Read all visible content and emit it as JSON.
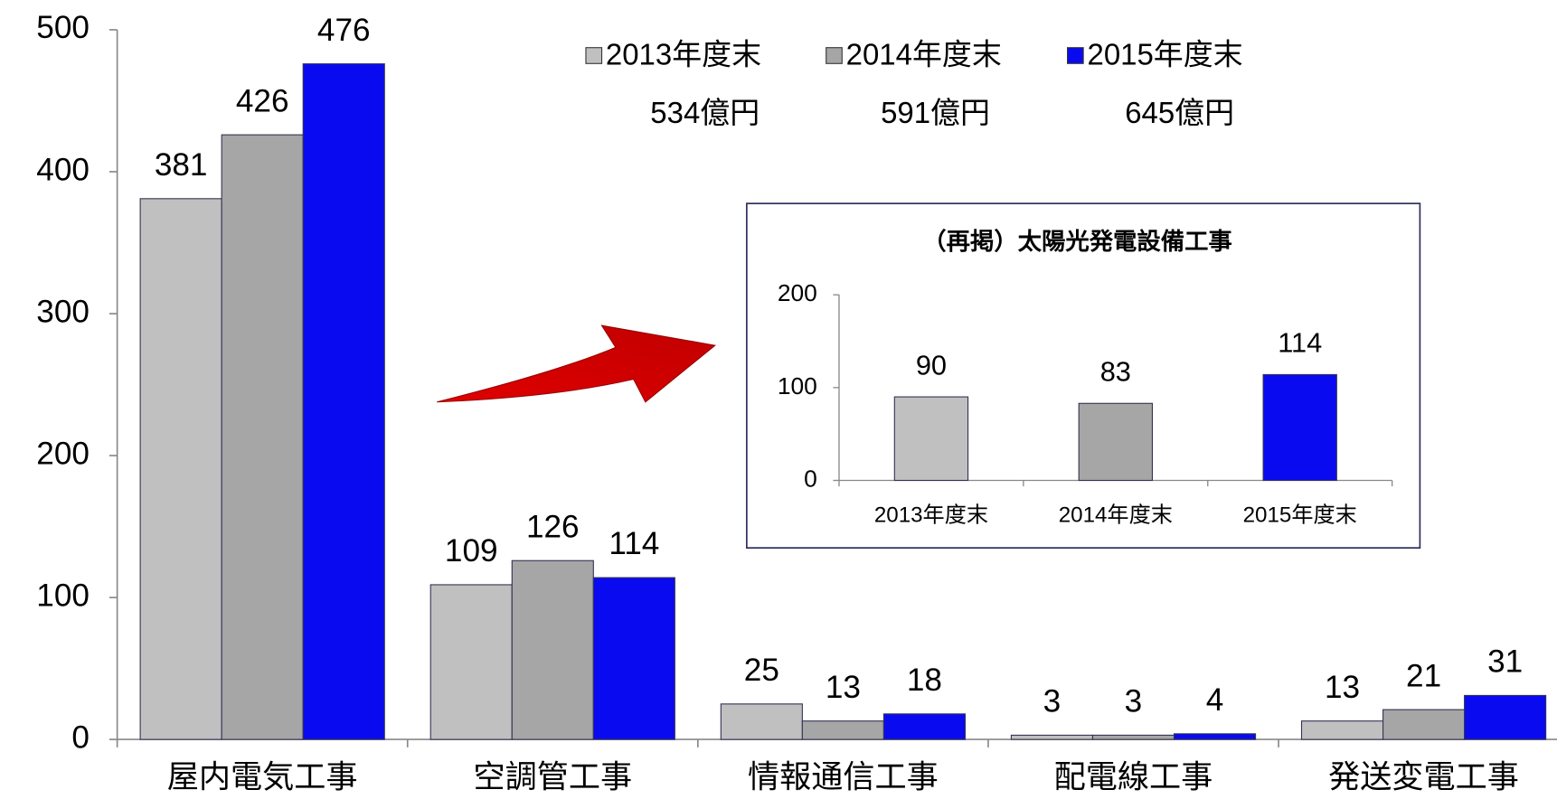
{
  "chart_data": [
    {
      "type": "bar",
      "categories": [
        "屋内電気工事",
        "空調管工事",
        "情報通信工事",
        "配電線工事",
        "発送変電工事"
      ],
      "series": [
        {
          "name": "2013年度末",
          "color": "#c0c0c0",
          "values": [
            381,
            109,
            25,
            3,
            13
          ]
        },
        {
          "name": "2014年度末",
          "color": "#a6a6a6",
          "values": [
            426,
            126,
            13,
            3,
            21
          ]
        },
        {
          "name": "2015年度末",
          "color": "#0a0af0",
          "values": [
            476,
            114,
            18,
            4,
            31
          ]
        }
      ],
      "annotations": [
        "534億円",
        "591億円",
        "645億円"
      ],
      "ylim": [
        0,
        500
      ],
      "yticks": [
        0,
        100,
        200,
        300,
        400,
        500
      ]
    },
    {
      "type": "bar",
      "title": "（再掲）太陽光発電設備工事",
      "categories": [
        "2013年度末",
        "2014年度末",
        "2015年度末"
      ],
      "values": [
        90,
        83,
        114
      ],
      "colors": [
        "#c0c0c0",
        "#a6a6a6",
        "#0a0af0"
      ],
      "ylim": [
        0,
        200
      ],
      "yticks": [
        0,
        100,
        200
      ]
    }
  ]
}
